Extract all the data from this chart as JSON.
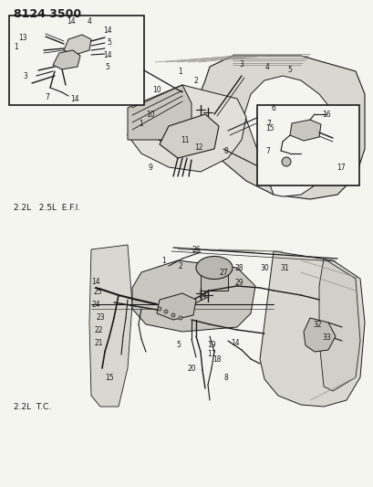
{
  "title": "8124 3500",
  "bg": "#f5f5f0",
  "dc": "#1a1a1a",
  "label_efi": "2.2L   2.5L  E.F.I.",
  "label_tc": "2.2L  T.C.",
  "gray_fill": "#c8c8c0",
  "light_gray": "#d8d8d0",
  "mid_gray": "#b0b0a8"
}
